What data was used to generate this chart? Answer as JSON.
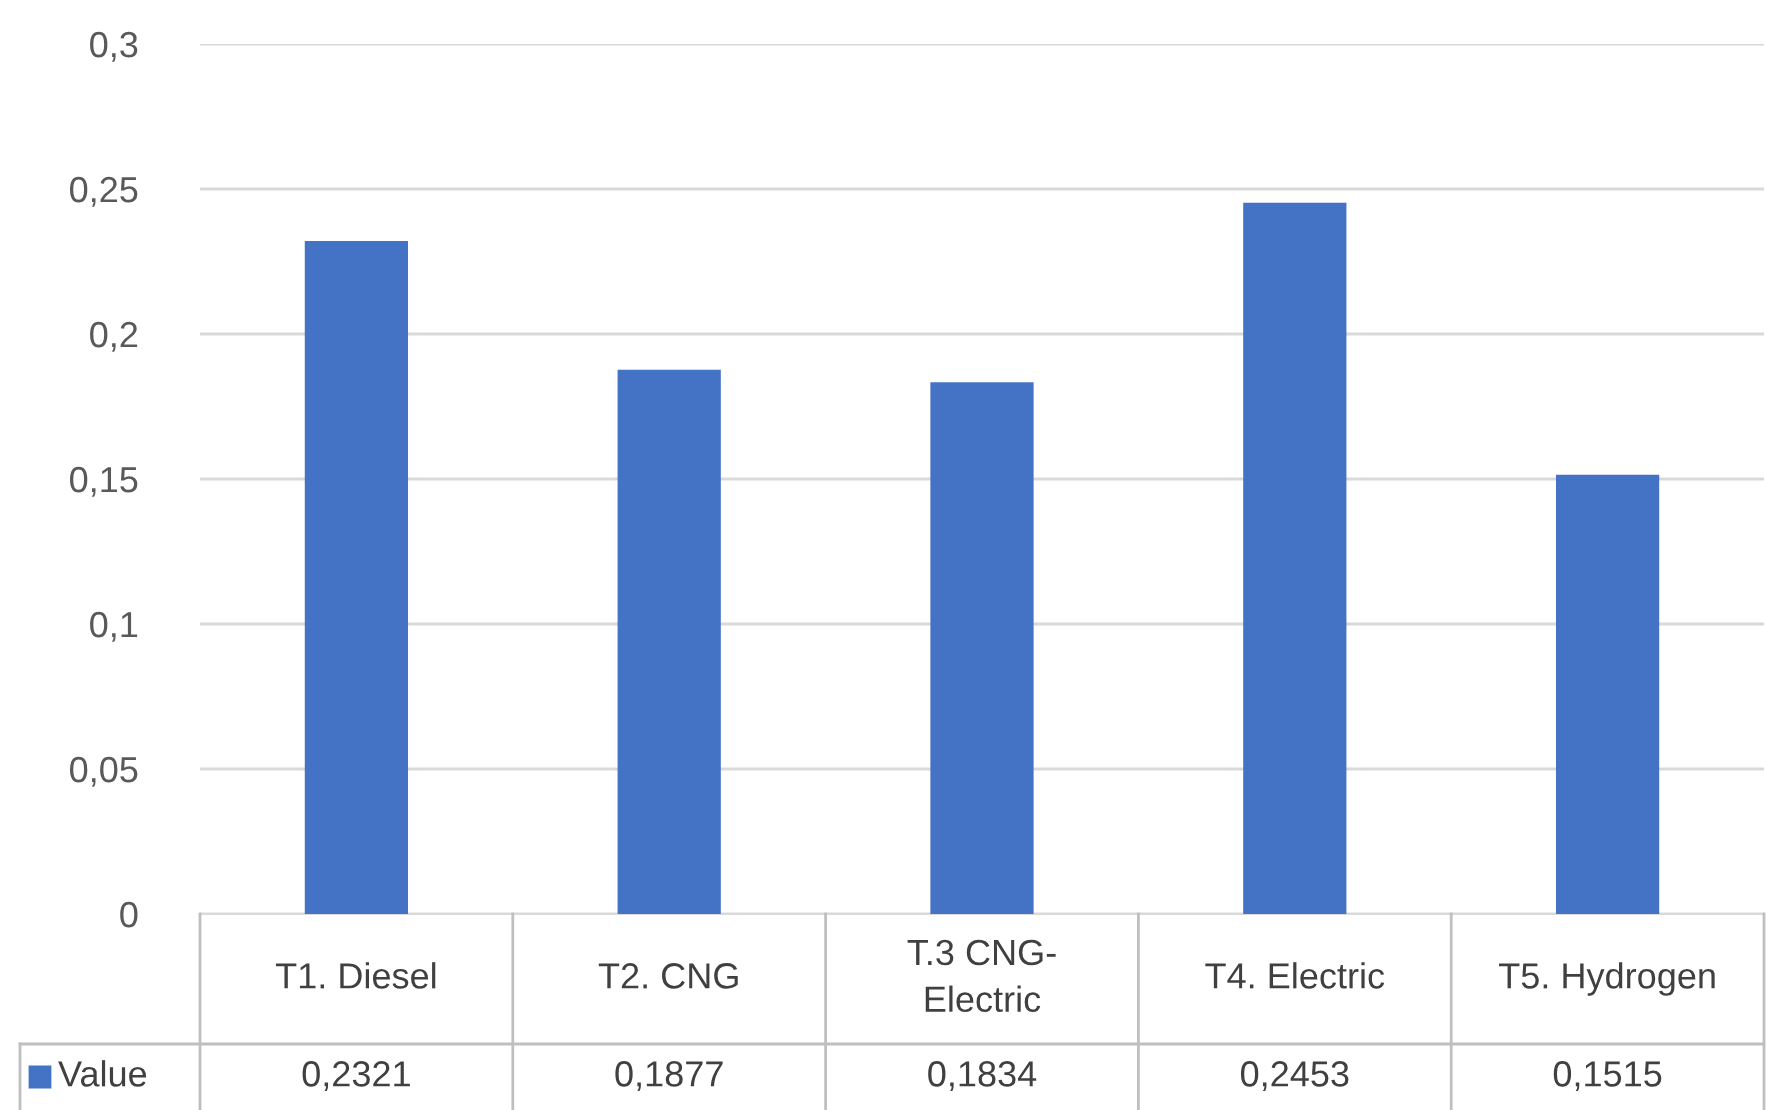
{
  "chart_data": {
    "type": "bar",
    "categories": [
      "T1. Diesel",
      "T2. CNG",
      "T.3 CNG-\nElectric",
      "T4. Electric",
      "T5. Hydrogen"
    ],
    "series": [
      {
        "name": "Value",
        "color": "#4472c4",
        "values": [
          0.2321,
          0.1877,
          0.1834,
          0.2453,
          0.1515
        ],
        "value_labels": [
          "0,2321",
          "0,1877",
          "0,1834",
          "0,2453",
          "0,1515"
        ]
      }
    ],
    "ylim": [
      0,
      0.3
    ],
    "yticks": [
      0,
      {
        "value": 0.05,
        "label": "0,05"
      },
      {
        "value": 0.1,
        "label": "0,1"
      },
      {
        "value": 0.15,
        "label": "0,15"
      },
      {
        "value": 0.2,
        "label": "0,2"
      },
      {
        "value": 0.25,
        "label": "0,25"
      },
      {
        "value": 0.3,
        "label": "0,3"
      }
    ],
    "grid": "y",
    "legend": "bottom"
  }
}
